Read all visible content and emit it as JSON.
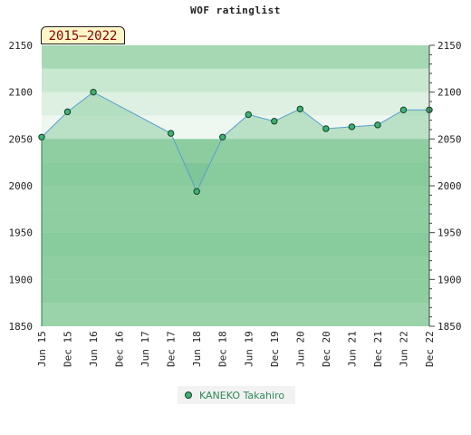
{
  "title": "WOF ratinglist",
  "range_label": "2015–2022",
  "colors": {
    "band_dark": "#7ec598",
    "band_mid": "#8ccc9f",
    "band_light": "#a6d8b3",
    "band_pale": "#c8e8d0",
    "area": "#8fd0a2",
    "line": "#5a9fd4",
    "marker": "#3cb371"
  },
  "chart_data": {
    "type": "area",
    "title": "WOF ratinglist",
    "xlabel": "",
    "ylabel": "",
    "ylim": [
      1850,
      2150
    ],
    "yticks": [
      "1850",
      "1900",
      "1950",
      "2000",
      "2050",
      "2100",
      "2150"
    ],
    "categories": [
      "Jun 15",
      "Dec 15",
      "Jun 16",
      "Dec 16",
      "Jun 17",
      "Dec 17",
      "Jun 18",
      "Dec 18",
      "Jun 19",
      "Dec 19",
      "Jun 20",
      "Dec 20",
      "Jun 21",
      "Dec 21",
      "Jun 22",
      "Dec 22"
    ],
    "series": [
      {
        "name": "KANEKO Takahiro",
        "values": [
          2052,
          2079,
          2100,
          null,
          null,
          2056,
          1994,
          2052,
          2076,
          2069,
          2082,
          2061,
          2063,
          2065,
          2081,
          2081
        ]
      }
    ],
    "legend_position": "bottom-center",
    "grid": true
  }
}
